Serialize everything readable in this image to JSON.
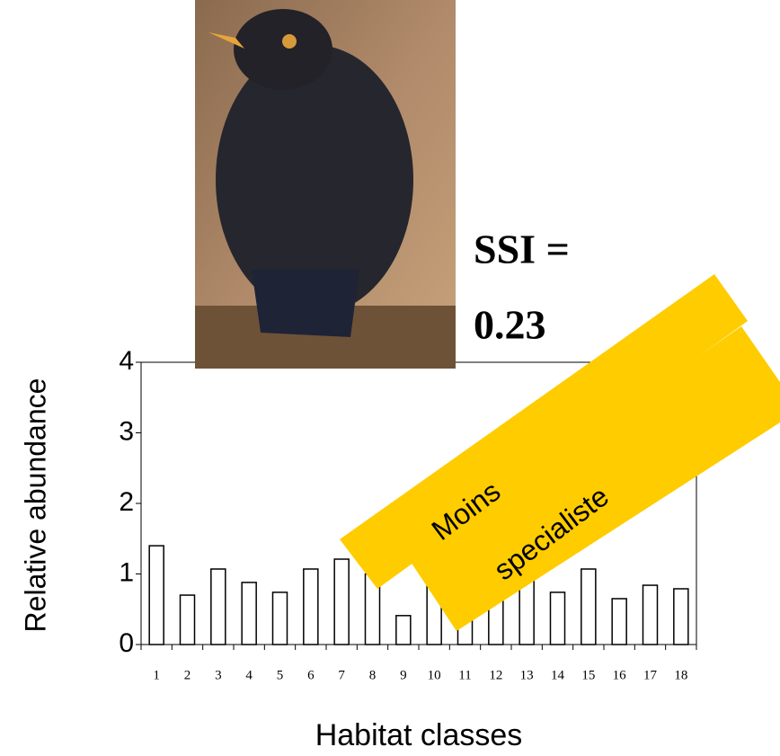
{
  "chart_data": {
    "type": "bar",
    "annotation": [
      "SSI =",
      "0.23"
    ],
    "banner": [
      "Moins",
      "specialiste"
    ],
    "xlabel": "Habitat classes",
    "ylabel": "Relative abundance",
    "categories": [
      "1",
      "2",
      "3",
      "4",
      "5",
      "6",
      "7",
      "8",
      "9",
      "10",
      "11",
      "12",
      "13",
      "14",
      "15",
      "16",
      "17",
      "18"
    ],
    "values": [
      1.4,
      0.7,
      1.07,
      0.88,
      0.74,
      1.07,
      1.21,
      1.0,
      0.41,
      1.0,
      0.9,
      1.0,
      1.0,
      0.74,
      1.07,
      0.65,
      0.84,
      0.79
    ],
    "color": "#ffffff",
    "ylim": [
      0,
      4
    ],
    "yticks": [
      0,
      1,
      2,
      3,
      4
    ],
    "grid": false
  }
}
